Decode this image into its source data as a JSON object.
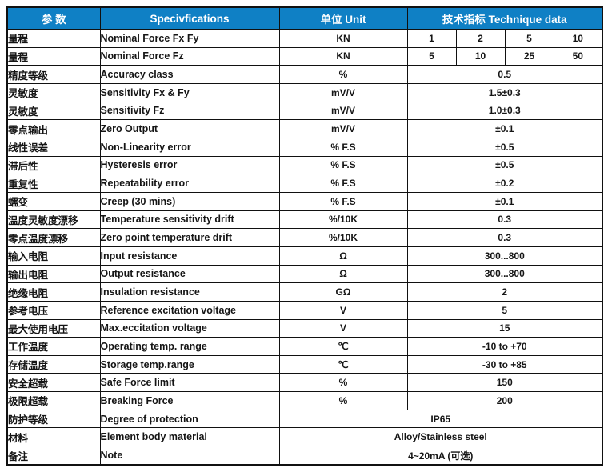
{
  "colors": {
    "header_bg": "#0f80c5",
    "header_text": "#ffffff",
    "border": "#111111",
    "body_text": "#151515"
  },
  "header": {
    "param": "参  数",
    "spec": "Specivfications",
    "unit": "单位  Unit",
    "data": "技术指标      Technique data"
  },
  "rows": [
    {
      "param": "量程",
      "spec": "Nominal Force Fx Fy",
      "unit": "KN",
      "values": [
        "1",
        "2",
        "5",
        "10"
      ]
    },
    {
      "param": "量程",
      "spec": "Nominal Force Fz",
      "unit": "KN",
      "values": [
        "5",
        "10",
        "25",
        "50"
      ]
    },
    {
      "param": "精度等级",
      "spec": "Accuracy class",
      "unit": "%",
      "value": "0.5"
    },
    {
      "param": "灵敏度",
      "spec": "Sensitivity Fx & Fy",
      "unit": "mV/V",
      "value": "1.5±0.3"
    },
    {
      "param": "灵敏度",
      "spec": "Sensitivity Fz",
      "unit": "mV/V",
      "value": "1.0±0.3"
    },
    {
      "param": "零点输出",
      "spec": "Zero Output",
      "unit": "mV/V",
      "value": "±0.1"
    },
    {
      "param": "线性误差",
      "spec": "Non-Linearity error",
      "unit": "% F.S",
      "value": "±0.5"
    },
    {
      "param": "滞后性",
      "spec": "Hysteresis error",
      "unit": "% F.S",
      "value": "±0.5"
    },
    {
      "param": "重复性",
      "spec": "Repeatability error",
      "unit": "% F.S",
      "value": "±0.2"
    },
    {
      "param": "蠕变",
      "spec": "Creep (30 mins)",
      "unit": "% F.S",
      "value": "±0.1"
    },
    {
      "param": "温度灵敏度漂移",
      "spec": "Temperature sensitivity drift",
      "unit": "%/10K",
      "value": "0.3"
    },
    {
      "param": "零点温度漂移",
      "spec": "Zero point temperature drift",
      "unit": "%/10K",
      "value": "0.3"
    },
    {
      "param": "输入电阻",
      "spec": "Input resistance",
      "unit": "Ω",
      "value": "300...800"
    },
    {
      "param": "输出电阻",
      "spec": "Output resistance",
      "unit": "Ω",
      "value": "300...800"
    },
    {
      "param": "绝缘电阻",
      "spec": "Insulation resistance",
      "unit": "GΩ",
      "value": "2"
    },
    {
      "param": "参考电压",
      "spec": "Reference excitation voltage",
      "unit": "V",
      "value": "5"
    },
    {
      "param": "最大使用电压",
      "spec": "Max.eccitation voltage",
      "unit": "V",
      "value": "15"
    },
    {
      "param": "工作温度",
      "spec": "Operating temp. range",
      "unit": "℃",
      "value": "-10 to +70"
    },
    {
      "param": "存储温度",
      "spec": "Storage temp.range",
      "unit": "℃",
      "value": "-30 to +85"
    },
    {
      "param": "安全超载",
      "spec": "Safe Force limit",
      "unit": "%",
      "value": "150"
    },
    {
      "param": "极限超载",
      "spec": "Breaking Force",
      "unit": "%",
      "value": "200"
    },
    {
      "param": "防护等级",
      "spec": "Degree of protection",
      "value_span": "IP65"
    },
    {
      "param": "材料",
      "spec": "Element body material",
      "value_span": "Alloy/Stainless steel"
    },
    {
      "param": "备注",
      "spec": "Note",
      "value_span": "4~20mA (可选)"
    }
  ]
}
